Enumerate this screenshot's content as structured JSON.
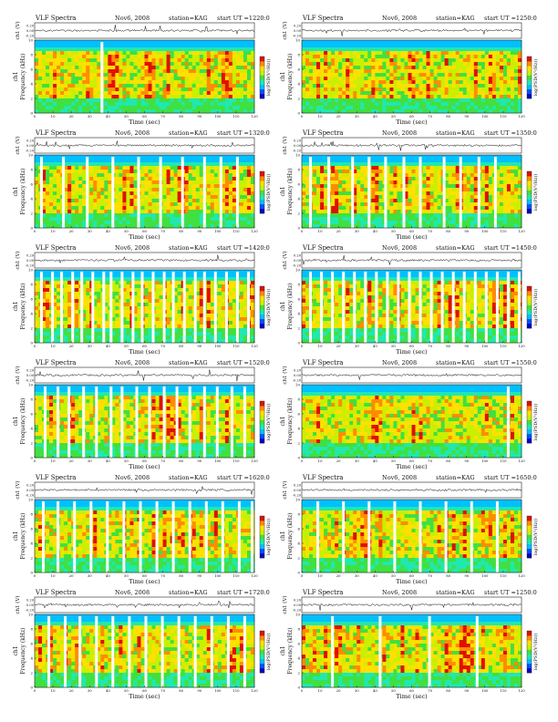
{
  "chart_data": {
    "type": "heatmap",
    "grid": {
      "columns": 2,
      "rows": 6
    },
    "colormap": [
      "#0000c8",
      "#0050ff",
      "#00c0ff",
      "#20e8b0",
      "#40e040",
      "#c8f000",
      "#ffe000",
      "#ff8c00",
      "#e01000",
      "#ffffff"
    ],
    "trace_color": "#111111",
    "panels": [
      {
        "header": {
          "kind": "VLF Spectra",
          "date": "Nov6, 2008",
          "station": "station=KAG",
          "start": "start UT =1220:0"
        },
        "gaps": [
          36
        ]
      },
      {
        "header": {
          "kind": "VLF Spectra",
          "date": "Nov6, 2008",
          "station": "station=KAG",
          "start": "start UT =1250:0"
        },
        "gaps": []
      },
      {
        "header": {
          "kind": "VLF Spectra",
          "date": "Nov6, 2008",
          "station": "station=KAG",
          "start": "start UT =1320:0"
        },
        "gaps": [
          3,
          15,
          28,
          42,
          56,
          68,
          80,
          92,
          101,
          110
        ]
      },
      {
        "header": {
          "kind": "VLF Spectra",
          "date": "Nov6, 2008",
          "station": "station=KAG",
          "start": "start UT =1350:0"
        },
        "gaps": [
          4,
          14,
          27,
          36,
          45,
          55,
          64,
          77,
          86,
          96,
          105
        ]
      },
      {
        "header": {
          "kind": "VLF Spectra",
          "date": "Nov6, 2008",
          "station": "station=KAG",
          "start": "start UT =1420:0"
        },
        "gaps": [
          3,
          9,
          14,
          20,
          25,
          31,
          37,
          41,
          47,
          53,
          58,
          64,
          70,
          75,
          81,
          87,
          92,
          98,
          104,
          110,
          116
        ]
      },
      {
        "header": {
          "kind": "VLF Spectra",
          "date": "Nov6, 2008",
          "station": "station=KAG",
          "start": "start UT =1450:0"
        },
        "gaps": [
          4,
          10,
          16,
          22,
          28,
          34,
          40,
          46,
          52,
          58,
          64,
          70,
          76,
          82,
          88,
          94,
          100,
          106,
          112,
          118
        ]
      },
      {
        "header": {
          "kind": "VLF Spectra",
          "date": "Nov6, 2008",
          "station": "station=KAG",
          "start": "start UT =1520:0"
        },
        "gaps": [
          5,
          12,
          18,
          26,
          33,
          41,
          47,
          55,
          62,
          70,
          77,
          84,
          92,
          99,
          107,
          114
        ]
      },
      {
        "header": {
          "kind": "VLF Spectra",
          "date": "Nov6, 2008",
          "station": "station=KAG",
          "start": "start UT =1550:0"
        },
        "gaps": [
          112
        ]
      },
      {
        "header": {
          "kind": "VLF Spectra",
          "date": "Nov6, 2008",
          "station": "station=KAG",
          "start": "start UT =1620:0"
        },
        "gaps": [
          4,
          12,
          21,
          30,
          39,
          48,
          57,
          66,
          75,
          84,
          93,
          102,
          111,
          118
        ]
      },
      {
        "header": {
          "kind": "VLF Spectra",
          "date": "Nov6, 2008",
          "station": "station=KAG",
          "start": "start UT =1650:0"
        },
        "gaps": [
          8,
          22,
          36,
          50,
          64,
          78,
          92,
          106
        ]
      },
      {
        "header": {
          "kind": "VLF Spectra",
          "date": "Nov6, 2008",
          "station": "station=KAG",
          "start": "start UT =1720:0"
        },
        "gaps": [
          7,
          16,
          24,
          33,
          42,
          51,
          60,
          69,
          78,
          87,
          96,
          105,
          114
        ]
      },
      {
        "header": {
          "kind": "VLF Spectra",
          "date": "Nov6, 2008",
          "station": "station=KAG",
          "start": "start UT =1250:0"
        },
        "gaps": [
          16,
          42,
          69,
          95
        ]
      }
    ],
    "axes": {
      "xlabel": "Time (sec)",
      "xlim": [
        0,
        120
      ],
      "xticks": [
        "0",
        "10",
        "20",
        "30",
        "40",
        "50",
        "60",
        "70",
        "80",
        "90",
        "100",
        "110",
        "120"
      ],
      "ylabel_spectrogram": "Frequency (kHz)",
      "channel_label": "ch1",
      "ylim": [
        0,
        10
      ],
      "yticks": [
        "0",
        "2",
        "4",
        "6",
        "8",
        "10"
      ],
      "trace_ylabel": "ch1 (V)",
      "trace_yticks": [
        "0.20",
        "0.00",
        "-0.20"
      ],
      "colorbar_label": "log(PSD(V²/Hz))"
    }
  }
}
